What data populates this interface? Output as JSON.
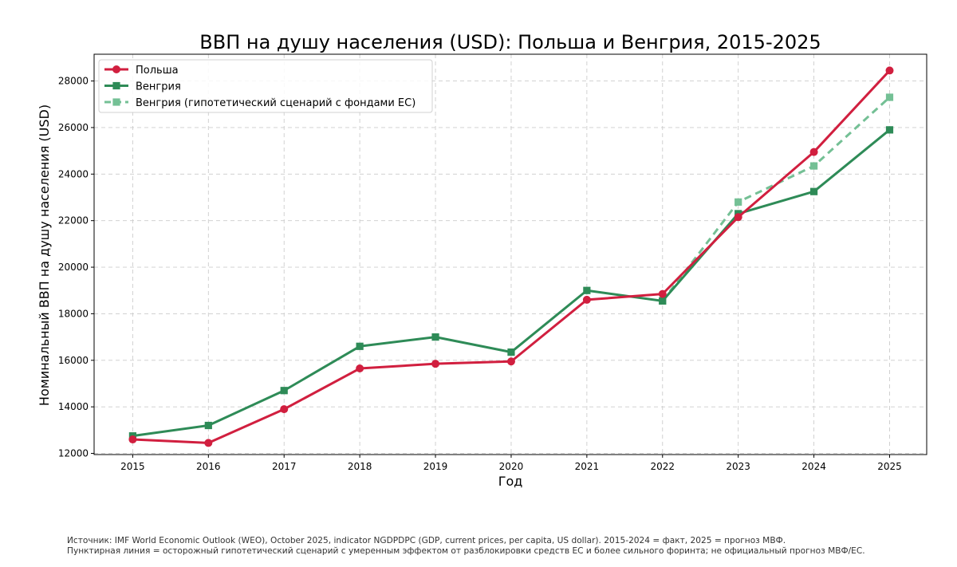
{
  "chart_data": {
    "type": "line",
    "title": "ВВП на душу населения (USD): Польша и Венгрия, 2015-2025",
    "xlabel": "Год",
    "ylabel": "Номинальный ВВП на душу населения (USD)",
    "x": [
      2015,
      2016,
      2017,
      2018,
      2019,
      2020,
      2021,
      2022,
      2023,
      2024,
      2025
    ],
    "ylim": [
      11950,
      29150
    ],
    "yticks": [
      12000,
      14000,
      16000,
      18000,
      20000,
      22000,
      24000,
      26000,
      28000
    ],
    "grid": true,
    "legend_position": "top-left",
    "series": [
      {
        "name": "Польша",
        "color": "#d11f3f",
        "marker": "circle",
        "line_style": "solid",
        "values": [
          12600,
          12450,
          13900,
          15650,
          15850,
          15950,
          18600,
          18850,
          22150,
          24950,
          28450
        ]
      },
      {
        "name": "Венгрия",
        "color": "#2e8b57",
        "marker": "square",
        "line_style": "solid",
        "values": [
          12750,
          13200,
          14700,
          16600,
          17000,
          16350,
          19000,
          18550,
          22300,
          23250,
          25900
        ]
      },
      {
        "name": "Венгрия (гипотетический сценарий с фондами ЕС)",
        "color": "#74c095",
        "marker": "square",
        "line_style": "dashed",
        "x": [
          2022,
          2023,
          2024,
          2025
        ],
        "values": [
          18550,
          22800,
          24350,
          27300
        ]
      }
    ]
  },
  "footer": {
    "line1": "Источник: IMF World Economic Outlook (WEO), October 2025, indicator NGDPDPC (GDP, current prices, per capita, US dollar). 2015-2024 = факт, 2025 = прогноз МВФ.",
    "line2": "Пунктирная линия = осторожный гипотетический сценарий с умеренным эффектом от разблокировки средств ЕС и более сильного форинта; не официальный прогноз МВФ/ЕС."
  }
}
